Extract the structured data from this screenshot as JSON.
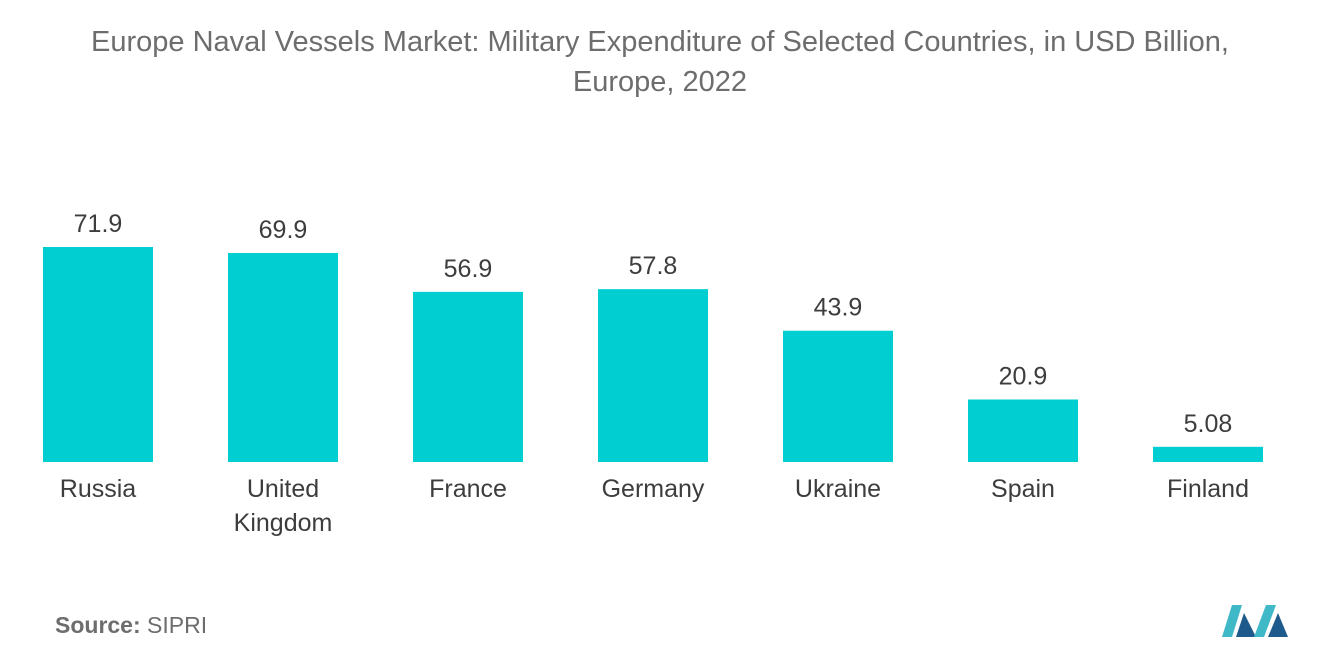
{
  "title_line1": "Europe Naval Vessels Market: Military Expenditure of Selected Countries, in USD Billion,",
  "title_line2": "Europe, 2022",
  "source_label": "Source:",
  "source_value": "SIPRI",
  "colors": {
    "bar": "#00ced1",
    "logo_dark": "#1e5a8c",
    "logo_light": "#3fb8c8"
  },
  "chart_data": {
    "type": "bar",
    "title": "Europe Naval Vessels Market: Military Expenditure of Selected Countries, in USD Billion, Europe, 2022",
    "categories": [
      "Russia",
      "United Kingdom",
      "France",
      "Germany",
      "Ukraine",
      "Spain",
      "Finland"
    ],
    "category_lines": [
      [
        "Russia"
      ],
      [
        "United",
        "Kingdom"
      ],
      [
        "France"
      ],
      [
        "Germany"
      ],
      [
        "Ukraine"
      ],
      [
        "Spain"
      ],
      [
        "Finland"
      ]
    ],
    "values": [
      71.9,
      69.9,
      56.9,
      57.8,
      43.9,
      20.9,
      5.08
    ],
    "value_labels": [
      "71.9",
      "69.9",
      "56.9",
      "57.8",
      "43.9",
      "20.9",
      "5.08"
    ],
    "xlabel": "",
    "ylabel": "",
    "ylim": [
      0,
      71.9
    ],
    "grid": false
  }
}
